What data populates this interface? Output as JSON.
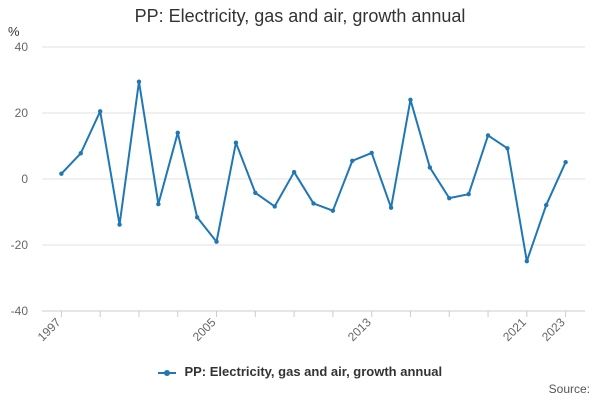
{
  "chart_data": {
    "type": "line",
    "title": "PP: Electricity, gas and air, growth annual",
    "ylabel": "%",
    "xlabel": "",
    "ylim": [
      -40,
      40
    ],
    "yticks": [
      -40,
      -20,
      0,
      20,
      40
    ],
    "xlim": [
      1996,
      2024
    ],
    "xticks": [
      1997,
      2005,
      2013,
      2021,
      2023
    ],
    "x": [
      1997,
      1998,
      1999,
      2000,
      2001,
      2002,
      2003,
      2004,
      2005,
      2006,
      2007,
      2008,
      2009,
      2010,
      2011,
      2012,
      2013,
      2014,
      2015,
      2016,
      2017,
      2018,
      2019,
      2020,
      2021,
      2022,
      2023
    ],
    "series": [
      {
        "name": "PP: Electricity, gas and air, growth annual",
        "values": [
          1.6,
          7.8,
          20.5,
          -13.8,
          29.5,
          -7.6,
          14.0,
          -11.6,
          -19.0,
          11.0,
          -4.2,
          -8.3,
          2.1,
          -7.4,
          -9.6,
          5.5,
          7.9,
          -8.7,
          24.0,
          3.5,
          -5.8,
          -4.6,
          13.2,
          9.3,
          -24.9,
          -7.9,
          5.1
        ]
      }
    ],
    "grid": true,
    "legend_position": "bottom-center",
    "series_color": "#1f77b4"
  },
  "footer": {
    "source_label": "Source:"
  }
}
